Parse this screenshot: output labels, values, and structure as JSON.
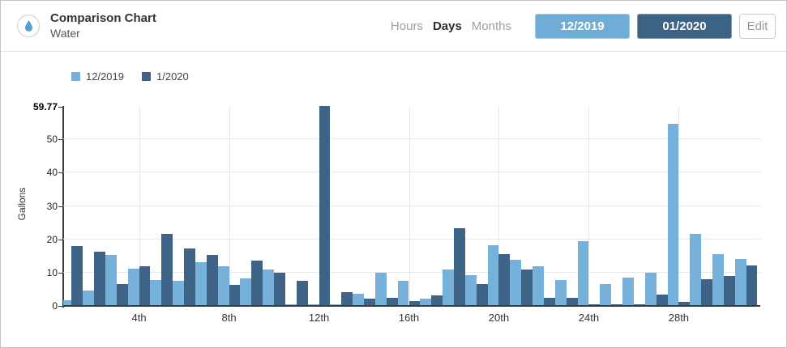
{
  "header": {
    "title": "Comparison Chart",
    "subtitle": "Water",
    "icon": "water-drop-icon",
    "range_tabs": [
      {
        "label": "Hours",
        "active": false
      },
      {
        "label": "Days",
        "active": true
      },
      {
        "label": "Months",
        "active": false
      }
    ],
    "period_buttons": [
      {
        "label": "12/2019",
        "color": "#6FADD6"
      },
      {
        "label": "01/2020",
        "color": "#3D6384"
      }
    ],
    "edit_label": "Edit"
  },
  "chart_data": {
    "type": "bar",
    "title": "",
    "xlabel": "",
    "ylabel": "Gallons",
    "ylim": [
      0,
      59.77
    ],
    "ymax_label": "59.77",
    "yticks": [
      0,
      10,
      20,
      30,
      40,
      50,
      59.77
    ],
    "grid": true,
    "legend_position": "top-left",
    "categories": [
      1,
      2,
      3,
      4,
      5,
      6,
      7,
      8,
      9,
      10,
      11,
      12,
      13,
      14,
      15,
      16,
      17,
      18,
      19,
      20,
      21,
      22,
      23,
      24,
      25,
      26,
      27,
      28,
      29,
      30,
      31
    ],
    "x_tick_labels": [
      {
        "day": 4,
        "label": "4th"
      },
      {
        "day": 8,
        "label": "8th"
      },
      {
        "day": 12,
        "label": "12th"
      },
      {
        "day": 16,
        "label": "16th"
      },
      {
        "day": 20,
        "label": "20th"
      },
      {
        "day": 24,
        "label": "24th"
      },
      {
        "day": 28,
        "label": "28th"
      }
    ],
    "series": [
      {
        "name": "12/2019",
        "color": "#76B1DC",
        "values": [
          1.4,
          4.3,
          15.1,
          11,
          7.5,
          7.4,
          12.8,
          11.6,
          7.9,
          10.8,
          0.3,
          0.3,
          0.3,
          3.3,
          9.8,
          7.3,
          2,
          10.8,
          9,
          17.9,
          13.6,
          11.6,
          7.5,
          19.3,
          6.3,
          8.3,
          9.8,
          54.5,
          21.5,
          15.4,
          13.8
        ]
      },
      {
        "name": "1/2020",
        "color": "#3D6486",
        "values": [
          17.7,
          16.1,
          6.2,
          11.7,
          21.3,
          17,
          15,
          6.1,
          13.4,
          9.6,
          7.3,
          59.77,
          3.9,
          1.9,
          2.1,
          1.2,
          2.8,
          23,
          6.4,
          15.2,
          10.8,
          2.2,
          2.2,
          0.3,
          0.3,
          0.3,
          3.2,
          0.9,
          7.7,
          8.7,
          12
        ]
      }
    ]
  }
}
